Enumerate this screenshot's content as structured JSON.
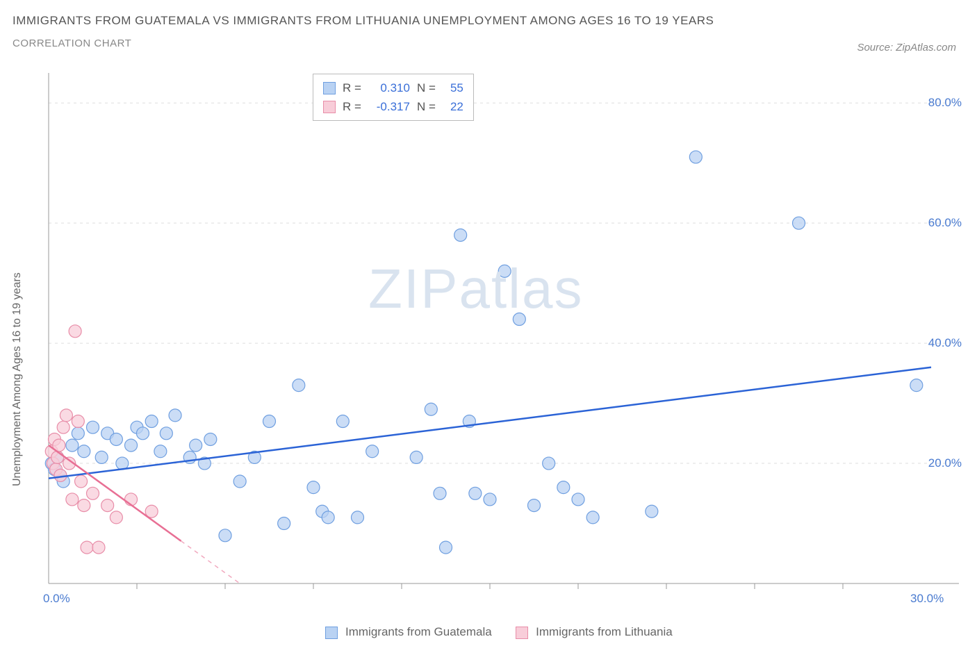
{
  "title": "IMMIGRANTS FROM GUATEMALA VS IMMIGRANTS FROM LITHUANIA UNEMPLOYMENT AMONG AGES 16 TO 19 YEARS",
  "subtitle": "CORRELATION CHART",
  "source": "Source: ZipAtlas.com",
  "watermark_a": "ZIP",
  "watermark_b": "atlas",
  "y_axis_label": "Unemployment Among Ages 16 to 19 years",
  "chart": {
    "type": "scatter",
    "background_color": "#ffffff",
    "grid_color": "#dddddd",
    "axis_color": "#999999",
    "tick_label_color": "#4a7bd0",
    "xlim": [
      0,
      30
    ],
    "ylim": [
      0,
      85
    ],
    "x_ticks": [
      0,
      30
    ],
    "x_tick_labels": [
      "0.0%",
      "30.0%"
    ],
    "y_ticks": [
      20,
      40,
      60,
      80
    ],
    "y_tick_labels": [
      "20.0%",
      "40.0%",
      "60.0%",
      "80.0%"
    ],
    "x_minor_ticks": [
      3,
      6,
      9,
      12,
      15,
      18,
      21,
      24,
      27
    ],
    "series": [
      {
        "name": "Immigrants from Guatemala",
        "color_fill": "#b9d2f3",
        "color_stroke": "#6f9fe0",
        "line_color": "#2b63d6",
        "line_width": 2.5,
        "marker_radius": 9,
        "marker_opacity": 0.75,
        "R": "0.310",
        "N": "55",
        "trend": {
          "x1": 0,
          "y1": 17.5,
          "x2": 30,
          "y2": 36
        },
        "points": [
          [
            0.1,
            20
          ],
          [
            0.2,
            19
          ],
          [
            0.3,
            21
          ],
          [
            0.4,
            18
          ],
          [
            0.8,
            23
          ],
          [
            1.0,
            25
          ],
          [
            1.2,
            22
          ],
          [
            1.5,
            26
          ],
          [
            1.8,
            21
          ],
          [
            2.0,
            25
          ],
          [
            2.3,
            24
          ],
          [
            2.5,
            20
          ],
          [
            2.8,
            23
          ],
          [
            3.0,
            26
          ],
          [
            3.2,
            25
          ],
          [
            3.5,
            27
          ],
          [
            3.8,
            22
          ],
          [
            4.0,
            25
          ],
          [
            4.3,
            28
          ],
          [
            4.8,
            21
          ],
          [
            5.0,
            23
          ],
          [
            5.3,
            20
          ],
          [
            5.5,
            24
          ],
          [
            6.0,
            8
          ],
          [
            6.5,
            17
          ],
          [
            7.0,
            21
          ],
          [
            7.5,
            27
          ],
          [
            8.0,
            10
          ],
          [
            8.5,
            33
          ],
          [
            9.0,
            16
          ],
          [
            9.3,
            12
          ],
          [
            9.5,
            11
          ],
          [
            10.0,
            27
          ],
          [
            10.5,
            11
          ],
          [
            11.0,
            22
          ],
          [
            12.5,
            21
          ],
          [
            13.0,
            29
          ],
          [
            13.3,
            15
          ],
          [
            13.5,
            6
          ],
          [
            14.0,
            58
          ],
          [
            14.3,
            27
          ],
          [
            14.5,
            15
          ],
          [
            15.0,
            14
          ],
          [
            15.5,
            52
          ],
          [
            16.0,
            44
          ],
          [
            16.5,
            13
          ],
          [
            17.0,
            20
          ],
          [
            17.5,
            16
          ],
          [
            18.0,
            14
          ],
          [
            18.5,
            11
          ],
          [
            20.5,
            12
          ],
          [
            22.0,
            71
          ],
          [
            25.5,
            60
          ],
          [
            29.5,
            33
          ],
          [
            0.5,
            17
          ]
        ]
      },
      {
        "name": "Immigrants from Lithuania",
        "color_fill": "#f8cdd9",
        "color_stroke": "#e88da8",
        "line_color": "#e86f94",
        "line_width": 2.5,
        "marker_radius": 9,
        "marker_opacity": 0.75,
        "R": "-0.317",
        "N": "22",
        "trend": {
          "x1": 0,
          "y1": 23,
          "x2": 6.5,
          "y2": 0
        },
        "trend_dash_after": 4.5,
        "points": [
          [
            0.1,
            22
          ],
          [
            0.15,
            20
          ],
          [
            0.2,
            24
          ],
          [
            0.25,
            19
          ],
          [
            0.3,
            21
          ],
          [
            0.35,
            23
          ],
          [
            0.4,
            18
          ],
          [
            0.5,
            26
          ],
          [
            0.6,
            28
          ],
          [
            0.7,
            20
          ],
          [
            0.8,
            14
          ],
          [
            0.9,
            42
          ],
          [
            1.0,
            27
          ],
          [
            1.1,
            17
          ],
          [
            1.2,
            13
          ],
          [
            1.3,
            6
          ],
          [
            1.5,
            15
          ],
          [
            1.7,
            6
          ],
          [
            2.0,
            13
          ],
          [
            2.3,
            11
          ],
          [
            2.8,
            14
          ],
          [
            3.5,
            12
          ]
        ]
      }
    ]
  },
  "bottom_legend": {
    "items": [
      {
        "label": "Immigrants from Guatemala",
        "fill": "#b9d2f3",
        "stroke": "#6f9fe0"
      },
      {
        "label": "Immigrants from Lithuania",
        "fill": "#f8cdd9",
        "stroke": "#e88da8"
      }
    ]
  }
}
